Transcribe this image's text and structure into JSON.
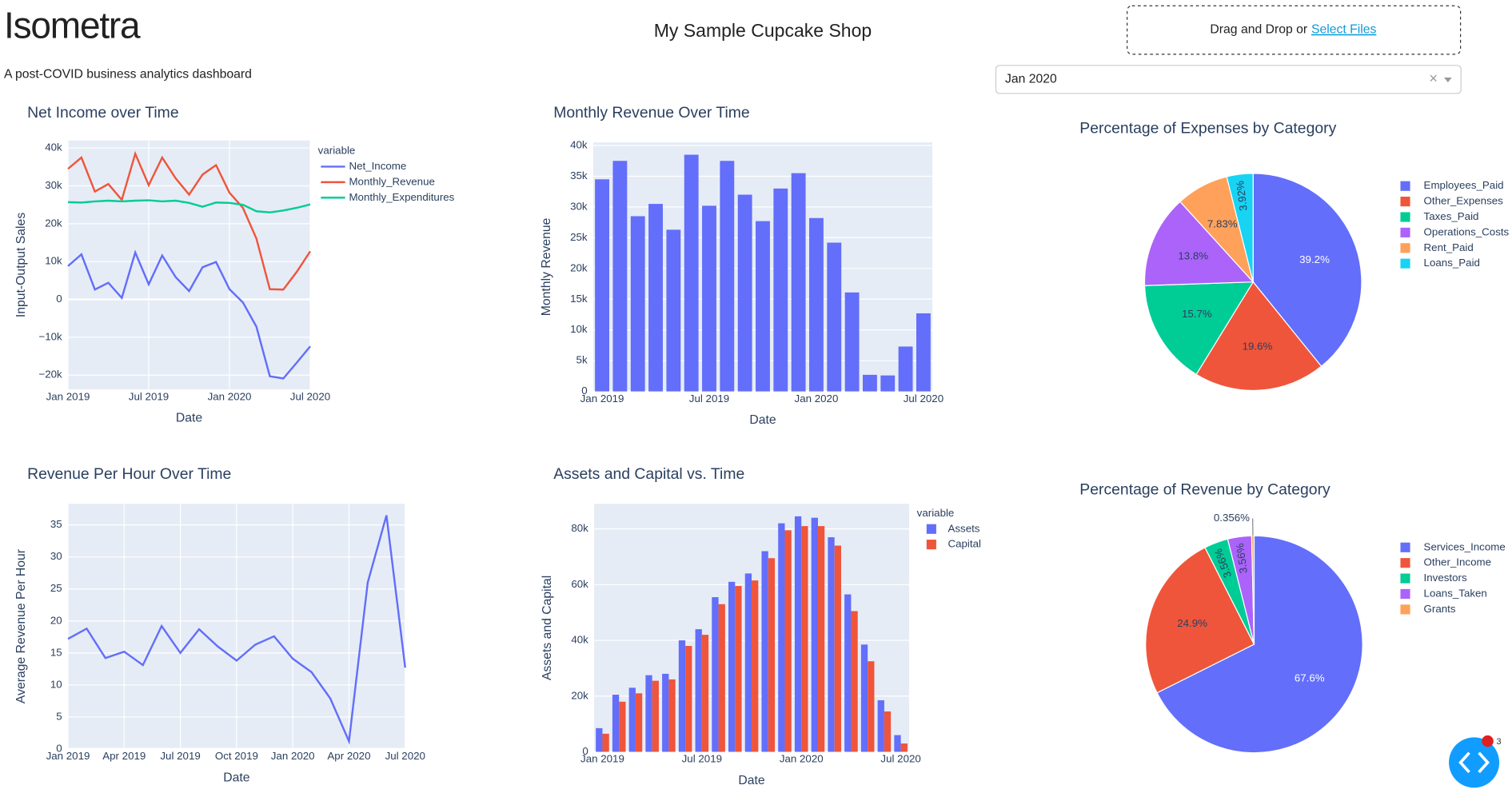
{
  "header": {
    "title": "Isometra",
    "subtitle": "A post-COVID business analytics dashboard",
    "shop_name": "My Sample Cupcake Shop",
    "upload_text": "Drag and Drop or",
    "upload_link": "Select Files",
    "dropdown_value": "Jan 2020",
    "dropdown_clear": "×",
    "debug_badge": "3"
  },
  "chart_data": [
    {
      "type": "line",
      "title": "Net Income over Time",
      "xlabel": "Date",
      "ylabel": "Input-Output Sales",
      "legend_title": "variable",
      "x": [
        "2019-01",
        "2019-02",
        "2019-03",
        "2019-04",
        "2019-05",
        "2019-06",
        "2019-07",
        "2019-08",
        "2019-09",
        "2019-10",
        "2019-11",
        "2019-12",
        "2020-01",
        "2020-02",
        "2020-03",
        "2020-04",
        "2020-05",
        "2020-06",
        "2020-07"
      ],
      "series": [
        {
          "name": "Net_Income",
          "color": "#636efa",
          "values": [
            8800,
            11900,
            2600,
            4400,
            400,
            12400,
            4000,
            11600,
            5900,
            2200,
            8500,
            9900,
            2700,
            -800,
            -7200,
            -20300,
            -20900,
            -16700,
            -12400
          ]
        },
        {
          "name": "Monthly_Revenue",
          "color": "#ef553b",
          "values": [
            34500,
            37500,
            28500,
            30500,
            26300,
            38500,
            30200,
            37500,
            32000,
            27700,
            33000,
            35500,
            28200,
            24200,
            16100,
            2700,
            2600,
            7300,
            12700
          ]
        },
        {
          "name": "Monthly_Expenditures",
          "color": "#00cc96",
          "values": [
            25700,
            25600,
            25900,
            26100,
            25900,
            26100,
            26200,
            25900,
            26100,
            25500,
            24500,
            25600,
            25500,
            25000,
            23300,
            23000,
            23500,
            24200,
            25100
          ]
        }
      ],
      "xlim": [
        "2019-01",
        "2020-07"
      ],
      "xticks": [
        {
          "value": "2019-01",
          "label": "Jan 2019"
        },
        {
          "value": "2019-07",
          "label": "Jul 2019"
        },
        {
          "value": "2020-01",
          "label": "Jan 2020"
        },
        {
          "value": "2020-07",
          "label": "Jul 2020"
        }
      ],
      "ylim": [
        -23800,
        42000
      ],
      "yticks": [
        {
          "value": -20000,
          "label": "−20k"
        },
        {
          "value": -10000,
          "label": "−10k"
        },
        0,
        {
          "value": 10000,
          "label": "10k"
        },
        {
          "value": 20000,
          "label": "20k"
        },
        {
          "value": 30000,
          "label": "30k"
        },
        {
          "value": 40000,
          "label": "40k"
        }
      ],
      "grid": true
    },
    {
      "type": "bar",
      "title": "Monthly Revenue Over Time",
      "xlabel": "Date",
      "ylabel": "Monthly Revenue",
      "color": "#636efa",
      "x": [
        "2019-01",
        "2019-02",
        "2019-03",
        "2019-04",
        "2019-05",
        "2019-06",
        "2019-07",
        "2019-08",
        "2019-09",
        "2019-10",
        "2019-11",
        "2019-12",
        "2020-01",
        "2020-02",
        "2020-03",
        "2020-04",
        "2020-05",
        "2020-06",
        "2020-07"
      ],
      "values": [
        34500,
        37500,
        28500,
        30500,
        26300,
        38500,
        30200,
        37500,
        32000,
        27700,
        33000,
        35500,
        28200,
        24200,
        16100,
        2700,
        2600,
        7300,
        12700
      ],
      "xticks": [
        {
          "value": "2019-01",
          "label": "Jan 2019"
        },
        {
          "value": "2019-07",
          "label": "Jul 2019"
        },
        {
          "value": "2020-01",
          "label": "Jan 2020"
        },
        {
          "value": "2020-07",
          "label": "Jul 2020"
        }
      ],
      "ylim": [
        0,
        40500
      ],
      "yticks": [
        0,
        {
          "value": 5000,
          "label": "5k"
        },
        {
          "value": 10000,
          "label": "10k"
        },
        {
          "value": 15000,
          "label": "15k"
        },
        {
          "value": 20000,
          "label": "20k"
        },
        {
          "value": 25000,
          "label": "25k"
        },
        {
          "value": 30000,
          "label": "30k"
        },
        {
          "value": 35000,
          "label": "35k"
        },
        {
          "value": 40000,
          "label": "40k"
        }
      ],
      "grid": true
    },
    {
      "type": "line",
      "title": "Revenue Per Hour Over Time",
      "xlabel": "Date",
      "ylabel": "Average Revenue Per Hour",
      "color": "#636efa",
      "x": [
        "2019-01",
        "2019-02",
        "2019-03",
        "2019-04",
        "2019-05",
        "2019-06",
        "2019-07",
        "2019-08",
        "2019-09",
        "2019-10",
        "2019-11",
        "2019-12",
        "2020-01",
        "2020-02",
        "2020-03",
        "2020-04",
        "2020-05",
        "2020-06",
        "2020-07"
      ],
      "values": [
        17.2,
        18.8,
        14.2,
        15.2,
        13.1,
        19.2,
        15.0,
        18.7,
        16.0,
        13.8,
        16.3,
        17.6,
        14.1,
        12.0,
        7.9,
        1.2,
        26.0,
        36.5,
        12.7
      ],
      "xlim": [
        "2019-01",
        "2020-07"
      ],
      "xticks": [
        {
          "value": "2019-01",
          "label": "Jan 2019"
        },
        {
          "value": "2019-04",
          "label": "Apr 2019"
        },
        {
          "value": "2019-07",
          "label": "Jul 2019"
        },
        {
          "value": "2019-10",
          "label": "Oct 2019"
        },
        {
          "value": "2020-01",
          "label": "Jan 2020"
        },
        {
          "value": "2020-04",
          "label": "Apr 2020"
        },
        {
          "value": "2020-07",
          "label": "Jul 2020"
        }
      ],
      "ylim": [
        0,
        38.3
      ],
      "yticks": [
        0,
        5,
        10,
        15,
        20,
        25,
        30,
        35
      ],
      "grid": true
    },
    {
      "type": "bar",
      "title": "Assets and Capital vs. Time",
      "xlabel": "Date",
      "ylabel": "Assets and Capital",
      "legend_title": "variable",
      "x": [
        "2019-01",
        "2019-02",
        "2019-03",
        "2019-04",
        "2019-05",
        "2019-06",
        "2019-07",
        "2019-08",
        "2019-09",
        "2019-10",
        "2019-11",
        "2019-12",
        "2020-01",
        "2020-02",
        "2020-03",
        "2020-04",
        "2020-05",
        "2020-06",
        "2020-07"
      ],
      "series": [
        {
          "name": "Assets",
          "color": "#636efa",
          "values": [
            8500,
            20500,
            23000,
            27500,
            28000,
            40000,
            44000,
            55500,
            61000,
            64000,
            72000,
            82000,
            84500,
            84000,
            77000,
            56500,
            38500,
            18500,
            6000
          ]
        },
        {
          "name": "Capital",
          "color": "#ef553b",
          "values": [
            6500,
            18000,
            21000,
            25500,
            26000,
            38000,
            42000,
            53000,
            59500,
            61500,
            69500,
            79500,
            81000,
            81000,
            74000,
            50500,
            32500,
            14500,
            3000
          ]
        }
      ],
      "xticks": [
        {
          "value": "2019-01",
          "label": "Jan 2019"
        },
        {
          "value": "2019-07",
          "label": "Jul 2019"
        },
        {
          "value": "2020-01",
          "label": "Jan 2020"
        },
        {
          "value": "2020-07",
          "label": "Jul 2020"
        }
      ],
      "ylim": [
        0,
        89000
      ],
      "yticks": [
        0,
        {
          "value": 20000,
          "label": "20k"
        },
        {
          "value": 40000,
          "label": "40k"
        },
        {
          "value": 60000,
          "label": "60k"
        },
        {
          "value": 80000,
          "label": "80k"
        }
      ],
      "grid": true
    },
    {
      "type": "pie",
      "title": "Percentage of Expenses by Category",
      "categories": [
        "Employees_Paid",
        "Other_Expenses",
        "Taxes_Paid",
        "Operations_Costs",
        "Rent_Paid",
        "Loans_Paid"
      ],
      "values": [
        39.2,
        19.6,
        15.7,
        13.8,
        7.83,
        3.92
      ],
      "value_labels": [
        "39.2%",
        "19.6%",
        "15.7%",
        "13.8%",
        "7.83%",
        "3.92%"
      ],
      "colors": [
        "#636efa",
        "#ef553b",
        "#00cc96",
        "#ab63fa",
        "#ffa15a",
        "#19d3f3"
      ]
    },
    {
      "type": "pie",
      "title": "Percentage of Revenue by Category",
      "categories": [
        "Services_Income",
        "Other_Income",
        "Investors",
        "Loans_Taken",
        "Grants"
      ],
      "values": [
        67.6,
        24.9,
        3.56,
        3.56,
        0.356
      ],
      "value_labels": [
        "67.6%",
        "24.9%",
        "3.56%",
        "3.56%",
        "0.356%"
      ],
      "colors": [
        "#636efa",
        "#ef553b",
        "#00cc96",
        "#ab63fa",
        "#ffa15a"
      ]
    }
  ]
}
